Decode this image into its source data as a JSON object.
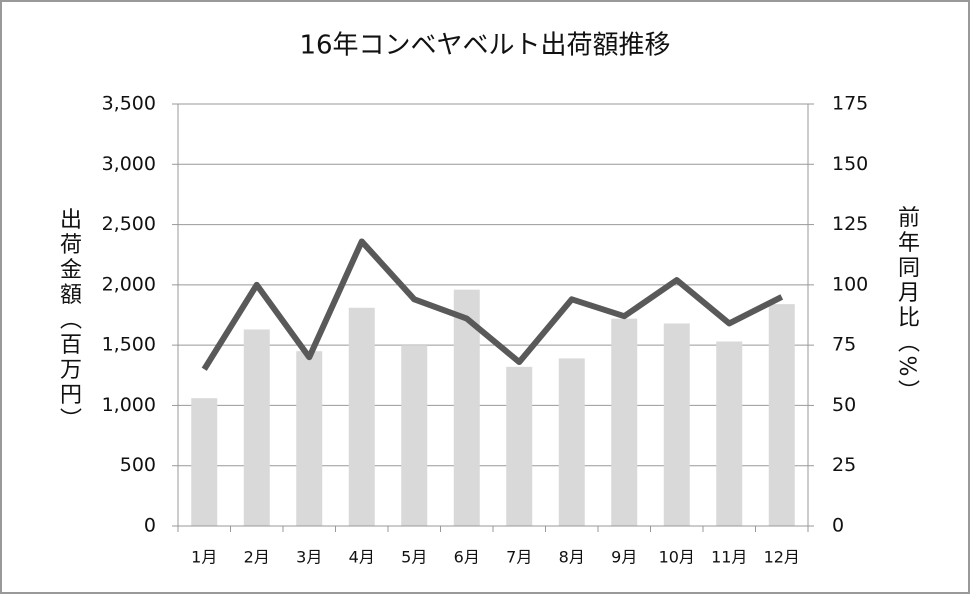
{
  "chart_data": {
    "type": "bar-line",
    "title": "16年コンベヤベルト出荷額推移",
    "y_label": "出荷金額（百万円）",
    "y2_label": "前年同月比（%）",
    "categories": [
      "1月",
      "2月",
      "3月",
      "4月",
      "5月",
      "6月",
      "7月",
      "8月",
      "9月",
      "10月",
      "11月",
      "12月"
    ],
    "series": [
      {
        "type": "bar",
        "color": "#d9d9d9",
        "values": [
          1060,
          1630,
          1450,
          1810,
          1500,
          1960,
          1320,
          1390,
          1720,
          1680,
          1530,
          1840
        ]
      },
      {
        "type": "line",
        "axis": "y2",
        "color": "#595959",
        "values": [
          65,
          100,
          70,
          118,
          94,
          86,
          68,
          94,
          87,
          102,
          84,
          95
        ]
      }
    ],
    "ylim": [
      0,
      3500
    ],
    "yticks": [
      0,
      500,
      {
        "value": 1000,
        "label": "1,000"
      },
      {
        "value": 1500,
        "label": "1,500"
      },
      {
        "value": 2000,
        "label": "2,000"
      },
      {
        "value": 2500,
        "label": "2,500"
      },
      {
        "value": 3000,
        "label": "3,000"
      },
      {
        "value": 3500,
        "label": "3,500"
      }
    ],
    "y2lim": [
      0,
      175
    ],
    "y2ticks": [
      0,
      25,
      50,
      75,
      100,
      125,
      150,
      175
    ],
    "grid": true
  }
}
